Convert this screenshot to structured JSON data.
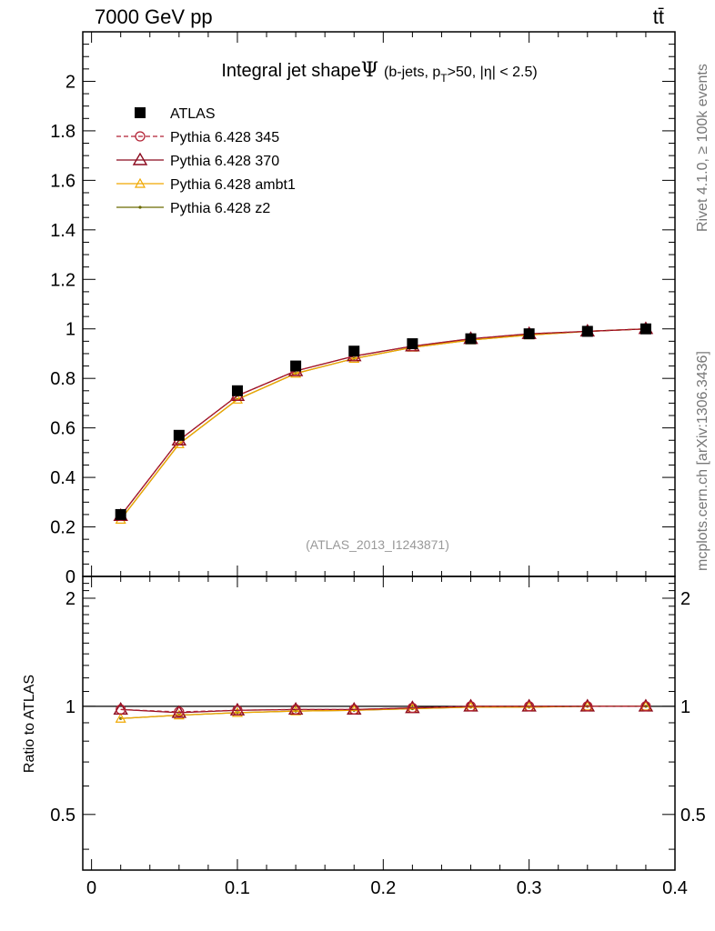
{
  "header": {
    "left": "7000 GeV pp",
    "right": "tt̄"
  },
  "side": {
    "rivet": "Rivet 4.1.0, ≥ 100k events",
    "mcplots": "mcplots.cern.ch [arXiv:1306.3436]"
  },
  "colors": {
    "atlas": "#000000",
    "p345": "#b22234",
    "p370": "#8b0a1e",
    "ambt1": "#f0a800",
    "z2": "#6b6b00"
  },
  "chart_data": [
    {
      "type": "line",
      "title": "Integral jet shape",
      "title_symbol": "Ψ",
      "title_suffix": "(b-jets, p",
      "title_sub": "T",
      "title_end": ">50, |η| < 2.5)",
      "watermark": "(ATLAS_2013_I1243871)",
      "xlabel": "",
      "ylabel": "",
      "xlim": [
        -0.006,
        0.4
      ],
      "ylim": [
        0,
        2.2
      ],
      "x_ticks": [
        0,
        0.1,
        0.2,
        0.3,
        0.4
      ],
      "y_ticks": [
        0,
        0.2,
        0.4,
        0.6,
        0.8,
        1,
        1.2,
        1.4,
        1.6,
        1.8,
        2
      ],
      "y_tick_labels": [
        "0",
        "0.2",
        "0.4",
        "0.6",
        "0.8",
        "1",
        "1.2",
        "1.4",
        "1.6",
        "1.8",
        "2"
      ],
      "legend_position": "top-left",
      "x": [
        0.02,
        0.06,
        0.1,
        0.14,
        0.18,
        0.22,
        0.26,
        0.3,
        0.34,
        0.38
      ],
      "series": [
        {
          "name": "ATLAS",
          "marker": "square",
          "line": "none",
          "color_key": "atlas",
          "values": [
            0.25,
            0.57,
            0.75,
            0.85,
            0.91,
            0.94,
            0.96,
            0.98,
            0.99,
            1.0
          ]
        },
        {
          "name": "Pythia 6.428 345",
          "marker": "circle",
          "line": "dashed",
          "color_key": "p345",
          "values": [
            0.245,
            0.55,
            0.73,
            0.83,
            0.89,
            0.93,
            0.96,
            0.98,
            0.99,
            1.0
          ]
        },
        {
          "name": "Pythia 6.428 370",
          "marker": "triangle",
          "line": "solid",
          "color_key": "p370",
          "values": [
            0.245,
            0.55,
            0.73,
            0.83,
            0.89,
            0.93,
            0.96,
            0.98,
            0.99,
            1.0
          ]
        },
        {
          "name": "Pythia 6.428 ambt1",
          "marker": "triangle-small",
          "line": "solid",
          "color_key": "ambt1",
          "values": [
            0.23,
            0.535,
            0.715,
            0.82,
            0.88,
            0.925,
            0.955,
            0.975,
            0.99,
            1.0
          ]
        },
        {
          "name": "Pythia 6.428 z2",
          "marker": "dot",
          "line": "solid",
          "color_key": "z2",
          "values": [
            0.23,
            0.535,
            0.715,
            0.82,
            0.88,
            0.925,
            0.955,
            0.975,
            0.99,
            1.0
          ]
        }
      ]
    },
    {
      "type": "line",
      "title": "",
      "ylabel": "Ratio to ATLAS",
      "xlim": [
        -0.006,
        0.4
      ],
      "ylim": [
        0.35,
        2.3
      ],
      "log_y": true,
      "x_ticks": [
        0,
        0.1,
        0.2,
        0.3,
        0.4
      ],
      "x_tick_labels": [
        "0",
        "0.1",
        "0.2",
        "0.3",
        "0.4"
      ],
      "y_ticks": [
        0.5,
        1,
        2
      ],
      "y_tick_labels": [
        "0.5",
        "1",
        "2"
      ],
      "reference_line": 1,
      "x": [
        0.02,
        0.06,
        0.1,
        0.14,
        0.18,
        0.22,
        0.26,
        0.3,
        0.34,
        0.38
      ],
      "series": [
        {
          "name": "Pythia 6.428 345",
          "marker": "circle",
          "line": "dashed",
          "color_key": "p345",
          "values": [
            0.98,
            0.965,
            0.975,
            0.98,
            0.98,
            0.99,
            1.0,
            1.0,
            1.0,
            1.0
          ]
        },
        {
          "name": "Pythia 6.428 370",
          "marker": "triangle",
          "line": "solid",
          "color_key": "p370",
          "values": [
            0.98,
            0.96,
            0.975,
            0.98,
            0.98,
            0.99,
            1.0,
            1.0,
            1.0,
            1.0
          ]
        },
        {
          "name": "Pythia 6.428 ambt1",
          "marker": "triangle-small",
          "line": "solid",
          "color_key": "ambt1",
          "values": [
            0.925,
            0.945,
            0.96,
            0.97,
            0.975,
            0.985,
            0.995,
            0.995,
            1.0,
            1.0
          ]
        },
        {
          "name": "Pythia 6.428 z2",
          "marker": "dot",
          "line": "solid",
          "color_key": "z2",
          "values": [
            0.925,
            0.945,
            0.96,
            0.97,
            0.975,
            0.985,
            0.995,
            0.995,
            1.0,
            1.0
          ]
        }
      ]
    }
  ]
}
